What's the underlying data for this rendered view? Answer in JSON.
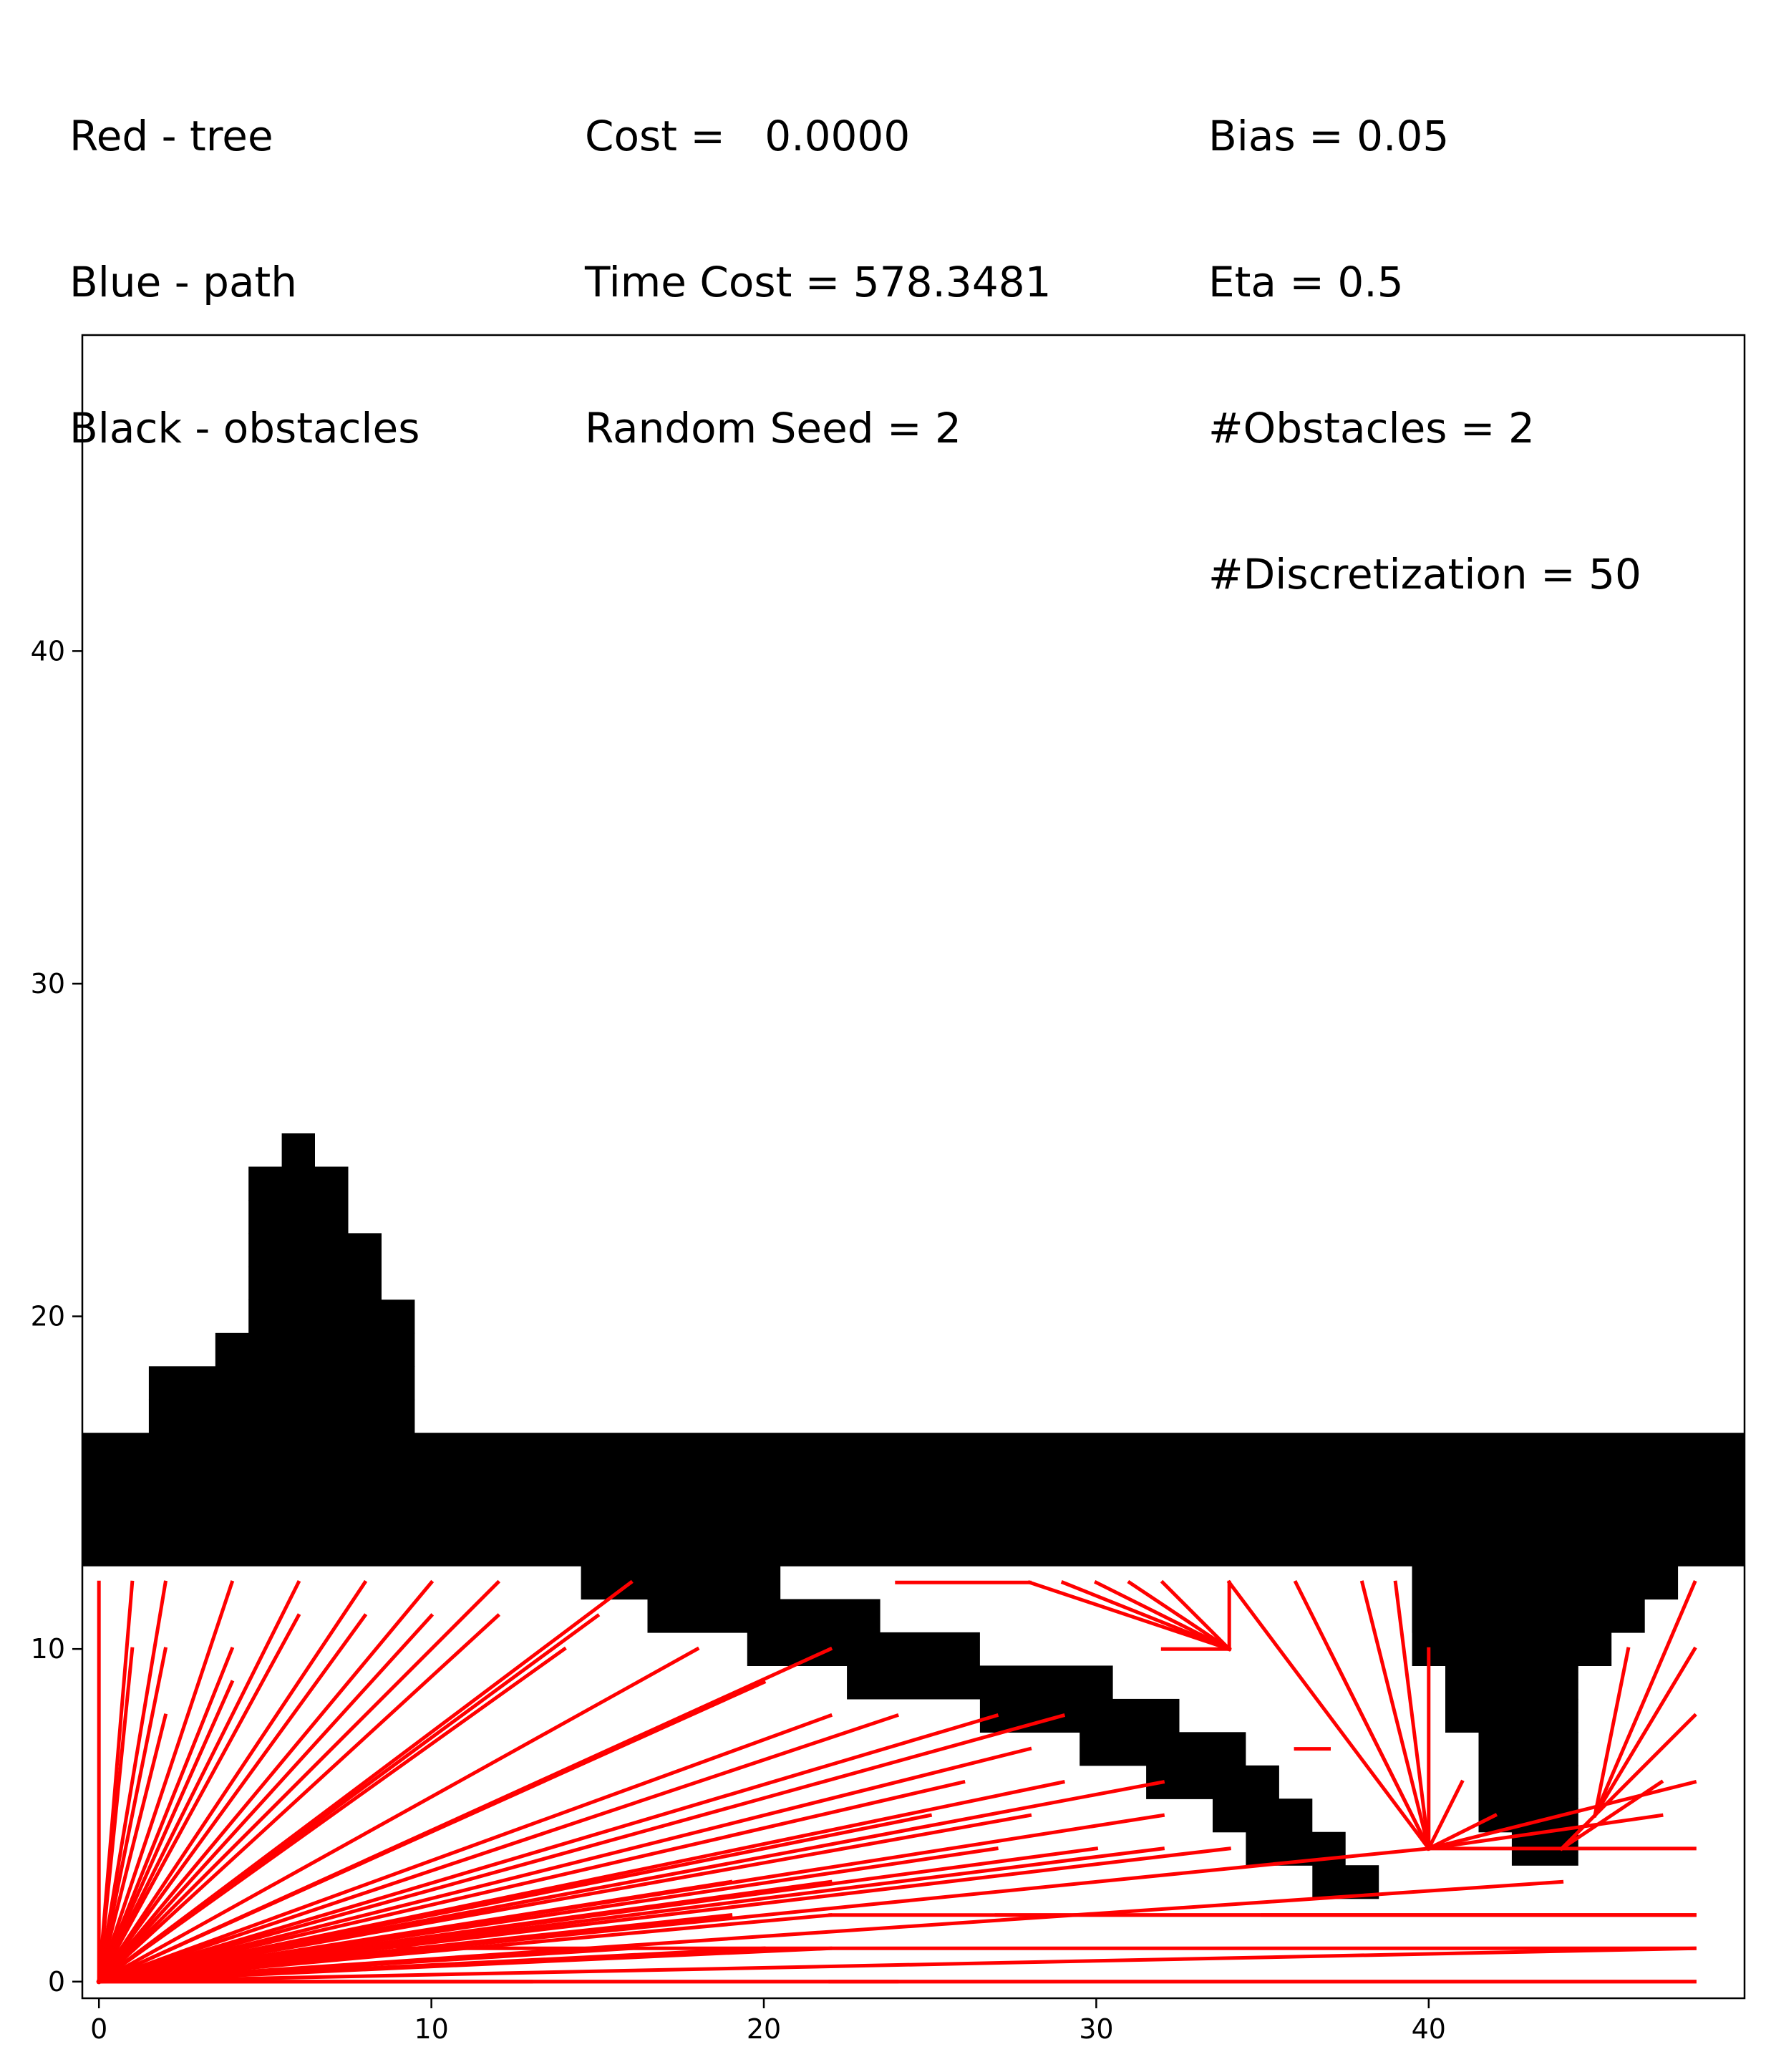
{
  "header": {
    "legend_lines": [
      "Red - tree",
      "Blue - path",
      "Black - obstacles"
    ],
    "stats_lines": [
      "Cost =   0.0000",
      "Time Cost = 578.3481",
      "Random Seed = 2"
    ],
    "params_lines": [
      "Bias = 0.05",
      "Eta = 0.5",
      "#Obstacles = 2",
      "#Discretization = 50"
    ]
  },
  "colors": {
    "tree": "#ff0000",
    "obstacles": "#000000",
    "path": "#0000ff",
    "background": "#ffffff"
  },
  "chart_data": {
    "type": "scatter",
    "title": "",
    "xlabel": "",
    "ylabel": "",
    "xlim": [
      -0.5,
      49.5
    ],
    "ylim": [
      49.5,
      -0.5
    ],
    "y_inverted": true,
    "grid": false,
    "xticks": [
      0,
      10,
      20,
      30,
      40
    ],
    "yticks": [
      0,
      10,
      20,
      30,
      40
    ],
    "obstacles": [
      {
        "y": 12,
        "x0": 40,
        "x1": 42
      },
      {
        "y": 13,
        "x0": 40,
        "x1": 42
      },
      {
        "y": 4,
        "x0": 37,
        "x1": 38
      },
      {
        "y": 5,
        "x0": 35,
        "x1": 37
      },
      {
        "y": 6,
        "x0": 34,
        "x1": 36
      },
      {
        "y": 7,
        "x0": 32,
        "x1": 35
      },
      {
        "y": 8,
        "x0": 30,
        "x1": 34
      },
      {
        "y": 9,
        "x0": 27,
        "x1": 32
      },
      {
        "y": 10,
        "x0": 23,
        "x1": 30
      },
      {
        "y": 11,
        "x0": 20,
        "x1": 26
      },
      {
        "y": 12,
        "x0": 17,
        "x1": 23
      },
      {
        "y": 13,
        "x0": 15,
        "x1": 20
      },
      {
        "y": 5,
        "x0": 43,
        "x1": 44
      },
      {
        "y": 6,
        "x0": 42,
        "x1": 44
      },
      {
        "y": 7,
        "x0": 42,
        "x1": 44
      },
      {
        "y": 8,
        "x0": 42,
        "x1": 44
      },
      {
        "y": 9,
        "x0": 41,
        "x1": 44
      },
      {
        "y": 10,
        "x0": 41,
        "x1": 44
      },
      {
        "y": 11,
        "x0": 40,
        "x1": 45
      },
      {
        "y": 12,
        "x0": 40,
        "x1": 46
      },
      {
        "y": 13,
        "x0": 40,
        "x1": 47
      },
      {
        "y": 14,
        "x0": 0,
        "x1": 49
      },
      {
        "y": 15,
        "x0": 0,
        "x1": 49
      },
      {
        "y": 16,
        "x0": 0,
        "x1": 49
      },
      {
        "y": 17,
        "x0": 0,
        "x1": 49
      },
      {
        "y": 18,
        "x0": 2,
        "x1": 9
      },
      {
        "y": 19,
        "x0": 2,
        "x1": 9
      },
      {
        "y": 20,
        "x0": 4,
        "x1": 9
      },
      {
        "y": 21,
        "x0": 5,
        "x1": 9
      },
      {
        "y": 22,
        "x0": 5,
        "x1": 8
      },
      {
        "y": 23,
        "x0": 5,
        "x1": 8
      },
      {
        "y": 24,
        "x0": 5,
        "x1": 7
      },
      {
        "y": 25,
        "x0": 5,
        "x1": 7
      },
      {
        "y": 26,
        "x0": 6,
        "x1": 6
      }
    ],
    "tree_edges": [
      [
        0,
        0,
        48,
        0
      ],
      [
        0,
        0,
        24,
        0
      ],
      [
        0,
        0,
        13,
        0
      ],
      [
        0,
        0,
        16,
        1
      ],
      [
        0,
        0,
        22,
        1
      ],
      [
        0,
        0,
        20,
        1
      ],
      [
        0,
        0,
        48,
        1
      ],
      [
        0,
        0,
        19,
        2
      ],
      [
        0,
        0,
        22,
        2
      ],
      [
        0,
        0,
        44,
        3
      ],
      [
        0,
        0,
        19,
        3
      ],
      [
        0,
        0,
        22,
        3
      ],
      [
        0,
        0,
        27,
        4
      ],
      [
        0,
        0,
        30,
        4
      ],
      [
        0,
        0,
        32,
        4
      ],
      [
        0,
        0,
        34,
        4
      ],
      [
        0,
        0,
        40,
        4
      ],
      [
        0,
        0,
        25,
        5
      ],
      [
        0,
        0,
        28,
        5
      ],
      [
        0,
        0,
        32,
        5
      ],
      [
        0,
        0,
        26,
        6
      ],
      [
        0,
        0,
        29,
        6
      ],
      [
        0,
        0,
        32,
        6
      ],
      [
        0,
        0,
        28,
        7
      ],
      [
        0,
        0,
        24,
        8
      ],
      [
        0,
        0,
        27,
        8
      ],
      [
        0,
        0,
        29,
        8
      ],
      [
        0,
        0,
        22,
        10
      ],
      [
        0,
        0,
        18,
        10
      ],
      [
        0,
        0,
        15,
        11
      ],
      [
        0,
        0,
        12,
        11
      ],
      [
        0,
        0,
        10,
        12
      ],
      [
        0,
        0,
        16,
        12
      ],
      [
        0,
        0,
        12,
        12
      ],
      [
        0,
        0,
        8,
        12
      ],
      [
        0,
        0,
        6,
        12
      ],
      [
        0,
        0,
        4,
        12
      ],
      [
        0,
        0,
        2,
        12
      ],
      [
        0,
        0,
        1,
        12
      ],
      [
        0,
        0,
        0,
        12
      ],
      [
        0,
        0,
        1,
        10
      ],
      [
        0,
        0,
        2,
        10
      ],
      [
        0,
        0,
        4,
        10
      ],
      [
        0,
        0,
        4,
        9
      ],
      [
        0,
        0,
        2,
        8
      ],
      [
        0,
        0,
        6,
        11
      ],
      [
        0,
        0,
        8,
        11
      ],
      [
        0,
        0,
        10,
        11
      ],
      [
        0,
        0,
        14,
        10
      ],
      [
        0,
        0,
        20,
        9
      ],
      [
        0,
        0,
        22,
        8
      ],
      [
        9,
        1,
        48,
        1
      ],
      [
        22,
        2,
        48,
        2
      ],
      [
        27,
        2,
        48,
        2
      ],
      [
        35,
        2,
        48,
        2
      ],
      [
        22,
        0,
        48,
        0
      ],
      [
        40,
        4,
        48,
        4
      ],
      [
        40,
        4,
        48,
        6
      ],
      [
        40,
        4,
        47,
        5
      ],
      [
        40,
        4,
        40,
        10
      ],
      [
        40,
        4,
        41,
        6
      ],
      [
        40,
        4,
        42,
        5
      ],
      [
        40,
        4,
        39,
        12
      ],
      [
        40,
        4,
        38,
        12
      ],
      [
        40,
        4,
        36,
        12
      ],
      [
        40,
        4,
        34,
        12
      ],
      [
        40,
        4,
        37,
        10
      ],
      [
        34,
        10,
        32,
        10
      ],
      [
        34,
        10,
        32,
        12
      ],
      [
        34,
        10,
        31,
        12
      ],
      [
        34,
        10,
        30,
        12
      ],
      [
        34,
        10,
        29,
        12
      ],
      [
        34,
        10,
        34,
        12
      ],
      [
        28,
        12,
        24,
        12
      ],
      [
        34,
        10,
        28,
        12
      ],
      [
        45,
        5,
        48,
        8
      ],
      [
        45,
        5,
        48,
        10
      ],
      [
        45,
        5,
        48,
        12
      ],
      [
        45,
        5,
        46,
        10
      ],
      [
        44,
        4,
        47,
        6
      ],
      [
        44,
        4,
        45,
        5
      ],
      [
        37,
        7,
        36,
        7
      ]
    ]
  }
}
